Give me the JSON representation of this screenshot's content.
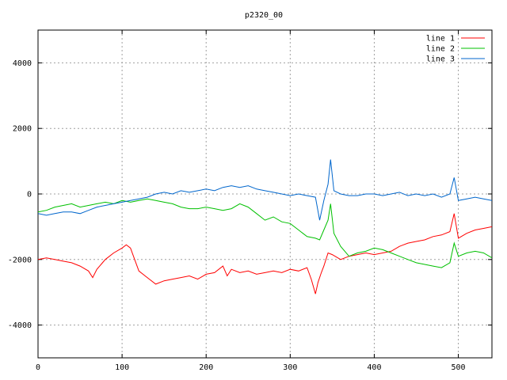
{
  "chart_data": {
    "type": "line",
    "title": "p2320_00",
    "xlabel": "",
    "ylabel": "",
    "xlim": [
      0,
      540
    ],
    "ylim": [
      -5000,
      5000
    ],
    "grid": true,
    "legend_position": "top-right",
    "x_ticks": [
      0,
      100,
      200,
      300,
      400,
      500
    ],
    "y_ticks": [
      -4000,
      -2000,
      0,
      2000,
      4000
    ],
    "series": [
      {
        "name": "line 1",
        "color": "#ff0000",
        "x": [
          0,
          10,
          20,
          30,
          40,
          50,
          60,
          65,
          70,
          80,
          90,
          100,
          105,
          110,
          115,
          120,
          130,
          140,
          150,
          160,
          170,
          180,
          190,
          200,
          210,
          220,
          225,
          230,
          240,
          250,
          260,
          270,
          280,
          290,
          300,
          310,
          320,
          325,
          330,
          333,
          337,
          340,
          345,
          350,
          360,
          370,
          380,
          390,
          400,
          410,
          420,
          430,
          440,
          450,
          460,
          470,
          480,
          490,
          495,
          500,
          510,
          520,
          530,
          540
        ],
        "y": [
          -2000,
          -1950,
          -2000,
          -2050,
          -2100,
          -2200,
          -2350,
          -2550,
          -2300,
          -2000,
          -1800,
          -1650,
          -1550,
          -1650,
          -2000,
          -2350,
          -2550,
          -2750,
          -2650,
          -2600,
          -2550,
          -2500,
          -2600,
          -2450,
          -2400,
          -2200,
          -2500,
          -2300,
          -2400,
          -2350,
          -2450,
          -2400,
          -2350,
          -2400,
          -2300,
          -2350,
          -2250,
          -2600,
          -3050,
          -2700,
          -2400,
          -2200,
          -1800,
          -1850,
          -2000,
          -1900,
          -1850,
          -1800,
          -1850,
          -1800,
          -1750,
          -1600,
          -1500,
          -1450,
          -1400,
          -1300,
          -1250,
          -1150,
          -600,
          -1350,
          -1200,
          -1100,
          -1050,
          -1000
        ]
      },
      {
        "name": "line 2",
        "color": "#00c000",
        "x": [
          0,
          10,
          20,
          30,
          40,
          50,
          60,
          70,
          80,
          90,
          100,
          110,
          120,
          130,
          140,
          150,
          160,
          170,
          180,
          190,
          200,
          210,
          220,
          230,
          240,
          250,
          260,
          270,
          280,
          290,
          300,
          310,
          320,
          330,
          335,
          340,
          345,
          348,
          352,
          360,
          370,
          380,
          390,
          400,
          410,
          420,
          430,
          440,
          450,
          460,
          470,
          480,
          490,
          495,
          500,
          510,
          520,
          530,
          540
        ],
        "y": [
          -550,
          -500,
          -400,
          -350,
          -300,
          -400,
          -350,
          -300,
          -250,
          -300,
          -200,
          -250,
          -200,
          -150,
          -200,
          -250,
          -300,
          -400,
          -450,
          -450,
          -400,
          -450,
          -500,
          -450,
          -300,
          -400,
          -600,
          -800,
          -700,
          -850,
          -900,
          -1100,
          -1300,
          -1350,
          -1400,
          -1100,
          -800,
          -300,
          -1200,
          -1600,
          -1900,
          -1800,
          -1750,
          -1650,
          -1700,
          -1800,
          -1900,
          -2000,
          -2100,
          -2150,
          -2200,
          -2250,
          -2100,
          -1500,
          -1900,
          -1800,
          -1750,
          -1800,
          -1950
        ]
      },
      {
        "name": "line 3",
        "color": "#0066cc",
        "x": [
          0,
          10,
          20,
          30,
          40,
          50,
          60,
          70,
          80,
          90,
          100,
          110,
          120,
          130,
          140,
          150,
          160,
          170,
          180,
          190,
          200,
          210,
          220,
          230,
          240,
          250,
          260,
          270,
          280,
          290,
          300,
          310,
          320,
          330,
          335,
          340,
          345,
          348,
          352,
          360,
          370,
          380,
          390,
          400,
          410,
          420,
          430,
          440,
          450,
          460,
          470,
          480,
          490,
          495,
          500,
          510,
          520,
          530,
          540
        ],
        "y": [
          -600,
          -650,
          -600,
          -550,
          -550,
          -600,
          -500,
          -400,
          -350,
          -300,
          -250,
          -200,
          -150,
          -100,
          0,
          50,
          0,
          100,
          50,
          100,
          150,
          100,
          200,
          250,
          200,
          250,
          150,
          100,
          50,
          0,
          -50,
          0,
          -50,
          -100,
          -800,
          -200,
          300,
          1050,
          100,
          0,
          -50,
          -50,
          0,
          0,
          -50,
          0,
          50,
          -50,
          0,
          -50,
          0,
          -100,
          0,
          500,
          -200,
          -150,
          -100,
          -150,
          -200
        ]
      }
    ]
  }
}
